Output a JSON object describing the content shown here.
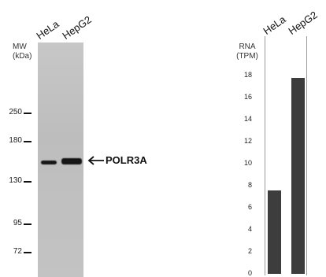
{
  "western_blot": {
    "mw_label_line1": "MW",
    "mw_label_line2": "(kDa)",
    "lanes": [
      "HeLa",
      "HepG2"
    ],
    "markers": [
      {
        "label": "250"
      },
      {
        "label": "180"
      },
      {
        "label": "130"
      },
      {
        "label": "95"
      },
      {
        "label": "72"
      }
    ],
    "band_label": "POLR3A"
  },
  "rna_panel": {
    "title_line1": "RNA",
    "title_line2": "(TPM)"
  },
  "chart_data": {
    "type": "bar",
    "categories": [
      "HeLa",
      "HepG2"
    ],
    "values": [
      7.6,
      17.8
    ],
    "title": "",
    "xlabel": "",
    "ylabel": "RNA (TPM)",
    "ylim": [
      0,
      20
    ],
    "yticks": [
      0,
      2,
      4,
      6,
      8,
      10,
      12,
      14,
      16,
      18
    ],
    "grid": false,
    "bar_color": "#3d3d3d"
  }
}
